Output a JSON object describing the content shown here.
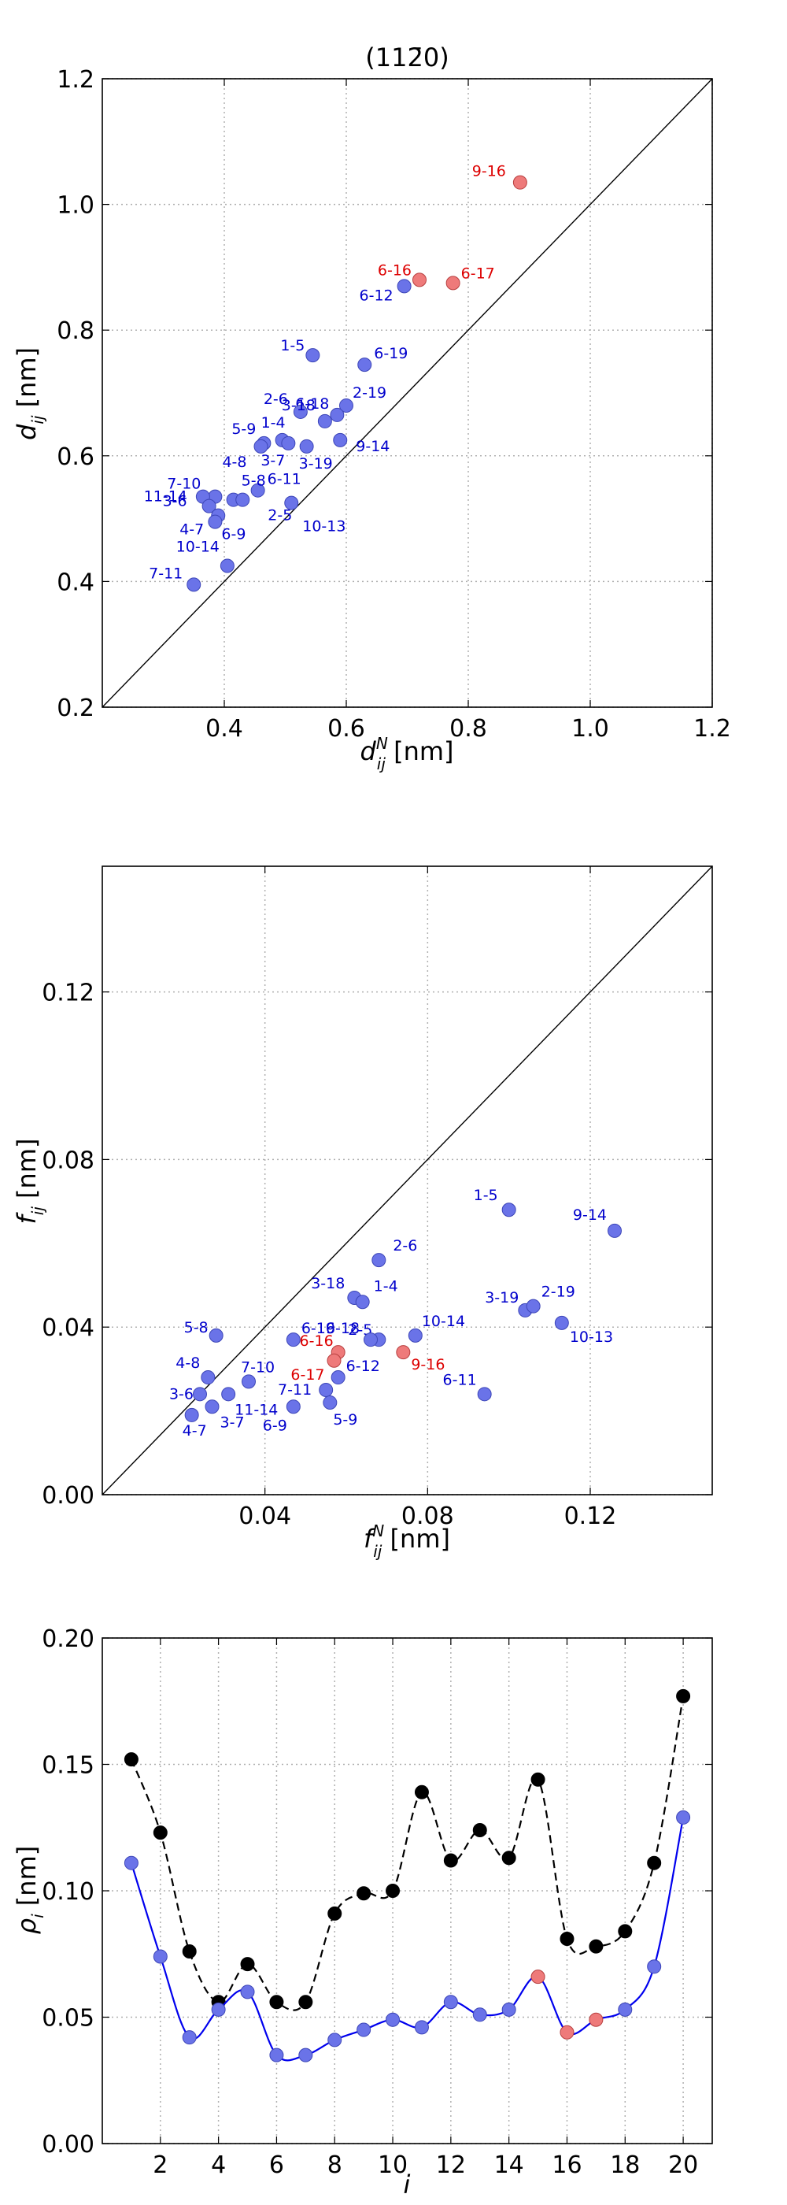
{
  "chart_data": [
    {
      "type": "scatter",
      "title": "(11¯2 0)",
      "xlabel": "d_ij^N [nm]",
      "ylabel": "d_ij [nm]",
      "xlim": [
        0.2,
        1.2
      ],
      "ylim": [
        0.2,
        1.2
      ],
      "xticks": [
        "0.4",
        "0.6",
        "0.8",
        "1.0",
        "1.2"
      ],
      "yticks": [
        "0.2",
        "0.4",
        "0.6",
        "0.8",
        "1.0",
        "1.2"
      ],
      "grid": true,
      "diagonal": true,
      "points": [
        {
          "label": "9-16",
          "x": 0.885,
          "y": 1.035,
          "color": "red"
        },
        {
          "label": "6-16",
          "x": 0.72,
          "y": 0.88,
          "color": "red"
        },
        {
          "label": "6-17",
          "x": 0.775,
          "y": 0.875,
          "color": "red"
        },
        {
          "label": "6-12",
          "x": 0.695,
          "y": 0.87,
          "color": "blue"
        },
        {
          "label": "1-5",
          "x": 0.545,
          "y": 0.76,
          "color": "blue"
        },
        {
          "label": "6-19",
          "x": 0.63,
          "y": 0.745,
          "color": "blue"
        },
        {
          "label": "2-19",
          "x": 0.6,
          "y": 0.68,
          "color": "blue"
        },
        {
          "label": "6-18",
          "x": 0.585,
          "y": 0.665,
          "color": "blue"
        },
        {
          "label": "2-6",
          "x": 0.525,
          "y": 0.67,
          "color": "blue"
        },
        {
          "label": "5-9",
          "x": 0.465,
          "y": 0.62,
          "color": "blue"
        },
        {
          "label": "1-4",
          "x": 0.495,
          "y": 0.625,
          "color": "blue"
        },
        {
          "label": "3-18",
          "x": 0.565,
          "y": 0.655,
          "color": "blue"
        },
        {
          "label": "9-14",
          "x": 0.59,
          "y": 0.625,
          "color": "blue"
        },
        {
          "label": "4-8",
          "x": 0.46,
          "y": 0.615,
          "color": "blue"
        },
        {
          "label": "3-7",
          "x": 0.505,
          "y": 0.62,
          "color": "blue"
        },
        {
          "label": "3-19",
          "x": 0.535,
          "y": 0.615,
          "color": "blue"
        },
        {
          "label": "6-11",
          "x": 0.455,
          "y": 0.545,
          "color": "blue"
        },
        {
          "label": "5-8",
          "x": 0.415,
          "y": 0.53,
          "color": "blue"
        },
        {
          "label": "7-10",
          "x": 0.385,
          "y": 0.535,
          "color": "blue"
        },
        {
          "label": "11-14",
          "x": 0.365,
          "y": 0.535,
          "color": "blue"
        },
        {
          "label": "2-5",
          "x": 0.43,
          "y": 0.53,
          "color": "blue"
        },
        {
          "label": "10-13",
          "x": 0.51,
          "y": 0.525,
          "color": "blue"
        },
        {
          "label": "3-6",
          "x": 0.375,
          "y": 0.52,
          "color": "blue"
        },
        {
          "label": "4-7",
          "x": 0.39,
          "y": 0.505,
          "color": "blue"
        },
        {
          "label": "6-9",
          "x": 0.385,
          "y": 0.495,
          "color": "blue"
        },
        {
          "label": "10-14",
          "x": 0.405,
          "y": 0.425,
          "color": "blue"
        },
        {
          "label": "7-11",
          "x": 0.35,
          "y": 0.395,
          "color": "blue"
        }
      ]
    },
    {
      "type": "scatter",
      "xlabel": "f_ij^N [nm]",
      "ylabel": "f_ij [nm]",
      "xlim": [
        0.0,
        0.15
      ],
      "ylim": [
        0.0,
        0.15
      ],
      "xticks": [
        "0.04",
        "0.08",
        "0.12"
      ],
      "yticks": [
        "0.00",
        "0.04",
        "0.08",
        "0.12"
      ],
      "grid": true,
      "diagonal": true,
      "points": [
        {
          "label": "1-5",
          "x": 0.1,
          "y": 0.068,
          "color": "blue"
        },
        {
          "label": "9-14",
          "x": 0.126,
          "y": 0.063,
          "color": "blue"
        },
        {
          "label": "2-6",
          "x": 0.068,
          "y": 0.056,
          "color": "blue"
        },
        {
          "label": "3-18",
          "x": 0.062,
          "y": 0.047,
          "color": "blue"
        },
        {
          "label": "1-4",
          "x": 0.064,
          "y": 0.046,
          "color": "blue"
        },
        {
          "label": "3-19",
          "x": 0.104,
          "y": 0.044,
          "color": "blue"
        },
        {
          "label": "2-19",
          "x": 0.106,
          "y": 0.045,
          "color": "blue"
        },
        {
          "label": "10-13",
          "x": 0.113,
          "y": 0.041,
          "color": "blue"
        },
        {
          "label": "10-14",
          "x": 0.077,
          "y": 0.038,
          "color": "blue"
        },
        {
          "label": "2-5",
          "x": 0.068,
          "y": 0.037,
          "color": "blue"
        },
        {
          "label": "6-18",
          "x": 0.066,
          "y": 0.037,
          "color": "blue"
        },
        {
          "label": "6-19",
          "x": 0.047,
          "y": 0.037,
          "color": "blue"
        },
        {
          "label": "5-8",
          "x": 0.028,
          "y": 0.038,
          "color": "blue"
        },
        {
          "label": "6-16",
          "x": 0.058,
          "y": 0.034,
          "color": "red"
        },
        {
          "label": "9-16",
          "x": 0.074,
          "y": 0.034,
          "color": "red"
        },
        {
          "label": "6-17",
          "x": 0.057,
          "y": 0.032,
          "color": "red"
        },
        {
          "label": "6-12",
          "x": 0.058,
          "y": 0.028,
          "color": "blue"
        },
        {
          "label": "4-8",
          "x": 0.026,
          "y": 0.028,
          "color": "blue"
        },
        {
          "label": "7-10",
          "x": 0.036,
          "y": 0.027,
          "color": "blue"
        },
        {
          "label": "7-11",
          "x": 0.055,
          "y": 0.025,
          "color": "blue"
        },
        {
          "label": "3-6",
          "x": 0.024,
          "y": 0.024,
          "color": "blue"
        },
        {
          "label": "11-14",
          "x": 0.031,
          "y": 0.024,
          "color": "blue"
        },
        {
          "label": "6-11",
          "x": 0.094,
          "y": 0.024,
          "color": "blue"
        },
        {
          "label": "5-9",
          "x": 0.056,
          "y": 0.022,
          "color": "blue"
        },
        {
          "label": "6-9",
          "x": 0.047,
          "y": 0.021,
          "color": "blue"
        },
        {
          "label": "3-7",
          "x": 0.027,
          "y": 0.021,
          "color": "blue"
        },
        {
          "label": "4-7",
          "x": 0.022,
          "y": 0.019,
          "color": "blue"
        }
      ]
    },
    {
      "type": "line",
      "xlabel": "i",
      "ylabel": "ρ_i [nm]",
      "xlim": [
        0,
        21
      ],
      "ylim": [
        0.0,
        0.2
      ],
      "xticks": [
        "2",
        "4",
        "6",
        "8",
        "10",
        "12",
        "14",
        "16",
        "18",
        "20"
      ],
      "yticks": [
        "0.00",
        "0.05",
        "0.10",
        "0.15",
        "0.20"
      ],
      "grid": true,
      "x": [
        1,
        2,
        3,
        4,
        5,
        6,
        7,
        8,
        9,
        10,
        11,
        12,
        13,
        14,
        15,
        16,
        17,
        18,
        19,
        20
      ],
      "series": [
        {
          "style": "black-dashed",
          "values": [
            0.152,
            0.123,
            0.076,
            0.056,
            0.071,
            0.056,
            0.056,
            0.091,
            0.099,
            0.1,
            0.139,
            0.112,
            0.124,
            0.113,
            0.144,
            0.081,
            0.078,
            0.084,
            0.111,
            0.177
          ]
        },
        {
          "style": "blue-solid",
          "values": [
            0.111,
            0.074,
            0.042,
            0.053,
            0.06,
            0.035,
            0.035,
            0.041,
            0.045,
            0.049,
            0.046,
            0.056,
            0.051,
            0.053,
            0.066,
            0.044,
            0.049,
            0.053,
            0.07,
            0.129
          ],
          "highlight_red_indices": [
            15,
            16,
            17
          ]
        }
      ]
    }
  ]
}
